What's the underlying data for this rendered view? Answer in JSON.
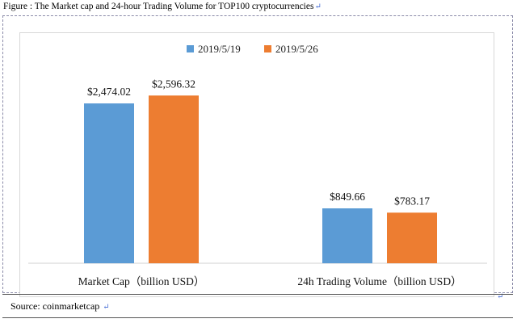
{
  "caption": "Figure : The Market cap and 24-hour Trading Volume for TOP100 cryptocurrencies",
  "source": "Source: coinmarketcap",
  "return_mark": "↵",
  "colors": {
    "series_1": "#5b9bd5",
    "series_2": "#ed7d31"
  },
  "chart_data": {
    "type": "bar",
    "categories": [
      "Market Cap（billion USD）",
      "24h Trading Volume（billion USD）"
    ],
    "series": [
      {
        "name": "2019/5/19",
        "values": [
          2474.02,
          849.66
        ],
        "labels": [
          "$2,474.02",
          "$849.66"
        ]
      },
      {
        "name": "2019/5/26",
        "values": [
          2596.32,
          783.17
        ],
        "labels": [
          "$2,596.32",
          "$783.17"
        ]
      }
    ],
    "ylim": [
      0,
      3000
    ],
    "grid": false,
    "legend": "top-center"
  }
}
